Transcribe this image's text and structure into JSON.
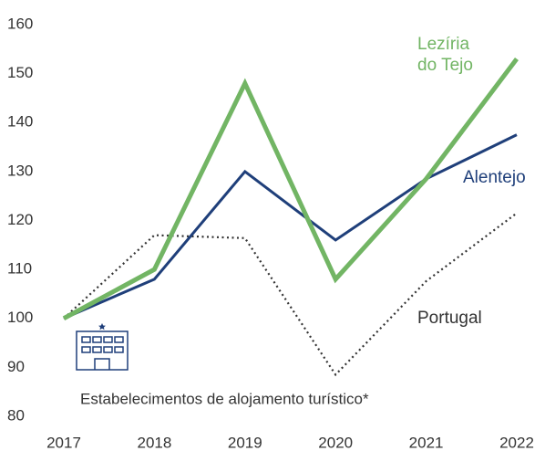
{
  "chart_data": {
    "type": "line",
    "x": [
      2017,
      2018,
      2019,
      2020,
      2021,
      2022
    ],
    "xlim": [
      2017,
      2022
    ],
    "xticks": [
      2017,
      2018,
      2019,
      2020,
      2021,
      2022
    ],
    "ylim": [
      80,
      160
    ],
    "yticks": [
      80,
      90,
      100,
      110,
      120,
      130,
      140,
      150,
      160
    ],
    "grid": false,
    "annotation": "Estabelecimentos de alojamento turístico*",
    "series": [
      {
        "name": "Portugal",
        "color": "#333333",
        "dash": "dotted",
        "values": [
          100,
          117,
          116.4,
          88.5,
          107.6,
          121.5
        ]
      },
      {
        "name": "Alentejo",
        "color": "#1f3f7a",
        "values": [
          100,
          108,
          130,
          116,
          128.5,
          137.5
        ]
      },
      {
        "name": "Lezíria do Tejo",
        "color": "#72b564",
        "values": [
          100,
          110,
          148,
          108,
          128.5,
          153
        ]
      }
    ]
  }
}
